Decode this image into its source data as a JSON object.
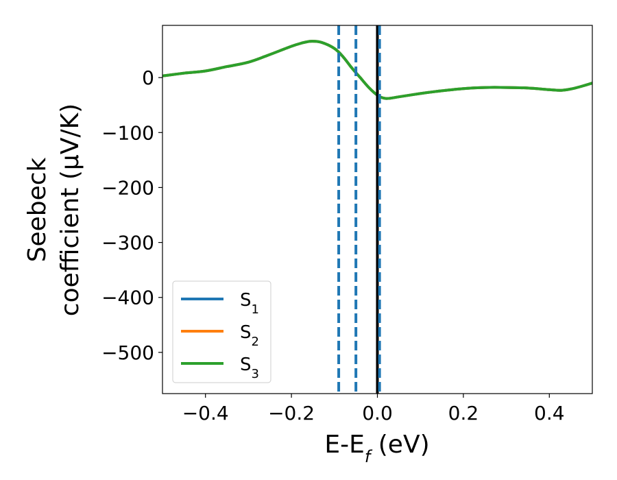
{
  "chart_data": {
    "type": "line",
    "xlabel": "E-E",
    "xlabel_subscript": "f",
    "xlabel_suffix": " (eV)",
    "ylabel_line1": "Seebeck",
    "ylabel_line2": "coefficient  (μV/K)",
    "xlim": [
      -0.5,
      0.5
    ],
    "ylim": [
      -575,
      95
    ],
    "xticks": [
      -0.4,
      -0.2,
      0.0,
      0.2,
      0.4
    ],
    "xtick_labels": [
      "−0.4",
      "−0.2",
      "0.0",
      "0.2",
      "0.4"
    ],
    "yticks": [
      0,
      -100,
      -200,
      -300,
      -400,
      -500
    ],
    "ytick_labels": [
      "0",
      "−100",
      "−200",
      "−300",
      "−400",
      "−500"
    ],
    "grid": false,
    "legend_position": "lower-left",
    "series": [
      {
        "name": "S",
        "subscript": "1",
        "color": "#1f77b4",
        "x": [
          -0.5,
          -0.45,
          -0.4,
          -0.35,
          -0.3,
          -0.25,
          -0.2,
          -0.175,
          -0.155,
          -0.13,
          -0.1,
          -0.08,
          -0.06,
          -0.04,
          -0.02,
          0.0,
          0.02,
          0.05,
          0.1,
          0.15,
          0.2,
          0.25,
          0.3,
          0.35,
          0.4,
          0.43,
          0.46,
          0.5
        ],
        "y": [
          3,
          8,
          12,
          20,
          28,
          42,
          57,
          63,
          66,
          64,
          53,
          38,
          18,
          0,
          -18,
          -32,
          -38,
          -35,
          -29,
          -24,
          -20,
          -18,
          -18,
          -19,
          -22,
          -23,
          -19,
          -10
        ]
      },
      {
        "name": "S",
        "subscript": "2",
        "color": "#ff7f0e",
        "x": [
          -0.5,
          -0.45,
          -0.4,
          -0.35,
          -0.3,
          -0.25,
          -0.2,
          -0.175,
          -0.155,
          -0.13,
          -0.1,
          -0.08,
          -0.06,
          -0.04,
          -0.02,
          0.0,
          0.02,
          0.05,
          0.1,
          0.15,
          0.2,
          0.25,
          0.3,
          0.35,
          0.4,
          0.43,
          0.46,
          0.5
        ],
        "y": [
          3,
          8,
          12,
          20,
          28,
          42,
          57,
          63,
          66,
          64,
          53,
          38,
          18,
          0,
          -18,
          -32,
          -38,
          -35,
          -29,
          -24,
          -20,
          -18,
          -18,
          -19,
          -22,
          -23,
          -19,
          -10
        ]
      },
      {
        "name": "S",
        "subscript": "3",
        "color": "#2ca02c",
        "x": [
          -0.5,
          -0.45,
          -0.4,
          -0.35,
          -0.3,
          -0.25,
          -0.2,
          -0.175,
          -0.155,
          -0.13,
          -0.1,
          -0.08,
          -0.06,
          -0.04,
          -0.02,
          0.0,
          0.02,
          0.05,
          0.1,
          0.15,
          0.2,
          0.25,
          0.3,
          0.35,
          0.4,
          0.43,
          0.46,
          0.5
        ],
        "y": [
          3,
          8,
          12,
          20,
          28,
          42,
          57,
          63,
          66,
          64,
          53,
          38,
          18,
          0,
          -18,
          -32,
          -38,
          -35,
          -29,
          -24,
          -20,
          -18,
          -18,
          -19,
          -22,
          -23,
          -19,
          -10
        ]
      }
    ],
    "vertical_lines": [
      {
        "x": -0.09,
        "style": "dashed",
        "color": "#1f77b4"
      },
      {
        "x": -0.05,
        "style": "dashed",
        "color": "#1f77b4"
      },
      {
        "x": 0.0,
        "style": "solid",
        "color": "#000000"
      },
      {
        "x": 0.005,
        "style": "dashed",
        "color": "#1f77b4"
      }
    ]
  }
}
